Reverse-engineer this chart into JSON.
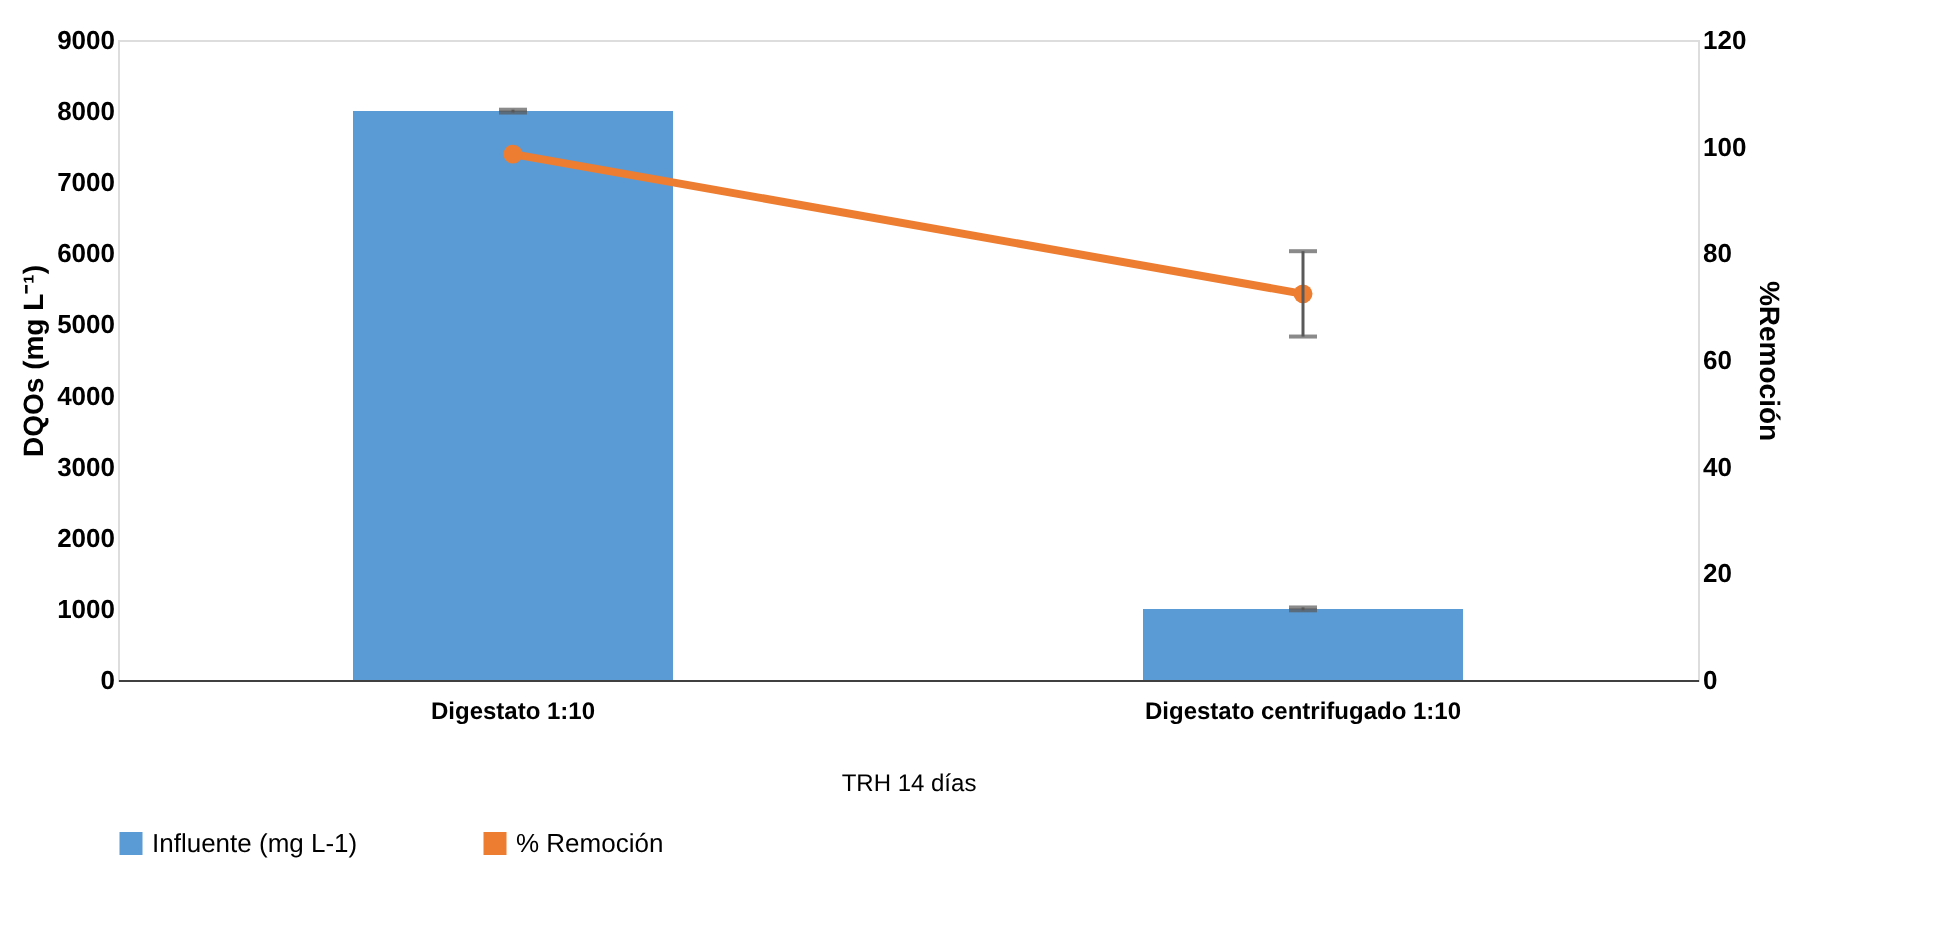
{
  "chart_data": {
    "type": "bar",
    "categories": [
      "Digestato 1:10",
      "Digestato centrifugado 1:10"
    ],
    "xlabel": "TRH  14 días",
    "ylabel": "DQOs (mg L⁻¹)",
    "y2label": "%Remoción",
    "series": [
      {
        "name": "Influente (mg L-1)",
        "color": "#5b9bd5",
        "values": [
          8000,
          1000
        ],
        "errors": [
          20,
          20
        ]
      },
      {
        "name": "% Remoción",
        "type": "line",
        "axis": "y2",
        "color": "#ed7d31",
        "values": [
          98.6,
          72.4
        ],
        "errors": [
          null,
          8
        ],
        "marker": "circle"
      }
    ],
    "ylim": [
      0,
      9000
    ],
    "yticks": [
      0,
      1000,
      2000,
      3000,
      4000,
      5000,
      6000,
      7000,
      8000,
      9000
    ],
    "y2lim": [
      0,
      120
    ],
    "y2ticks": [
      0,
      20,
      40,
      60,
      80,
      100,
      120
    ],
    "grid": false,
    "legend": "bottom"
  }
}
